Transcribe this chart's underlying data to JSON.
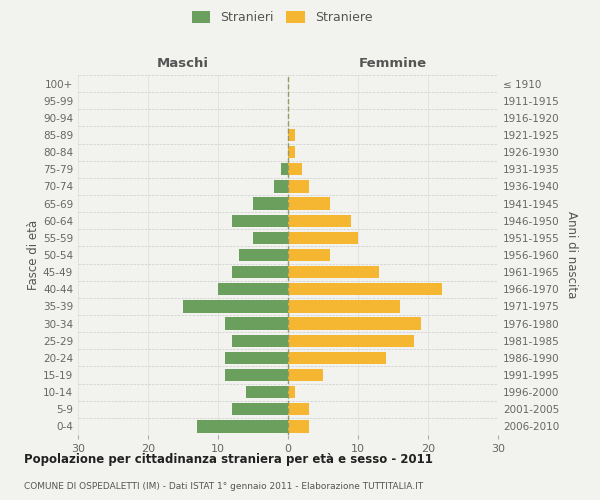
{
  "age_groups": [
    "0-4",
    "5-9",
    "10-14",
    "15-19",
    "20-24",
    "25-29",
    "30-34",
    "35-39",
    "40-44",
    "45-49",
    "50-54",
    "55-59",
    "60-64",
    "65-69",
    "70-74",
    "75-79",
    "80-84",
    "85-89",
    "90-94",
    "95-99",
    "100+"
  ],
  "birth_years": [
    "2006-2010",
    "2001-2005",
    "1996-2000",
    "1991-1995",
    "1986-1990",
    "1981-1985",
    "1976-1980",
    "1971-1975",
    "1966-1970",
    "1961-1965",
    "1956-1960",
    "1951-1955",
    "1946-1950",
    "1941-1945",
    "1936-1940",
    "1931-1935",
    "1926-1930",
    "1921-1925",
    "1916-1920",
    "1911-1915",
    "≤ 1910"
  ],
  "maschi": [
    13,
    8,
    6,
    9,
    9,
    8,
    9,
    15,
    10,
    8,
    7,
    5,
    8,
    5,
    2,
    1,
    0,
    0,
    0,
    0,
    0
  ],
  "femmine": [
    3,
    3,
    1,
    5,
    14,
    18,
    19,
    16,
    22,
    13,
    6,
    10,
    9,
    6,
    3,
    2,
    1,
    1,
    0,
    0,
    0
  ],
  "maschi_color": "#6a9f5e",
  "femmine_color": "#f5b731",
  "bg_color": "#f2f2ee",
  "title": "Popolazione per cittadinanza straniera per età e sesso - 2011",
  "subtitle": "COMUNE DI OSPEDALETTI (IM) - Dati ISTAT 1° gennaio 2011 - Elaborazione TUTTITALIA.IT",
  "ylabel_left": "Fasce di età",
  "ylabel_right": "Anni di nascita",
  "maschi_label": "Stranieri",
  "femmine_label": "Straniere",
  "maschi_header": "Maschi",
  "femmine_header": "Femmine",
  "xlim": 30,
  "figsize": [
    6.0,
    5.0
  ],
  "dpi": 100
}
